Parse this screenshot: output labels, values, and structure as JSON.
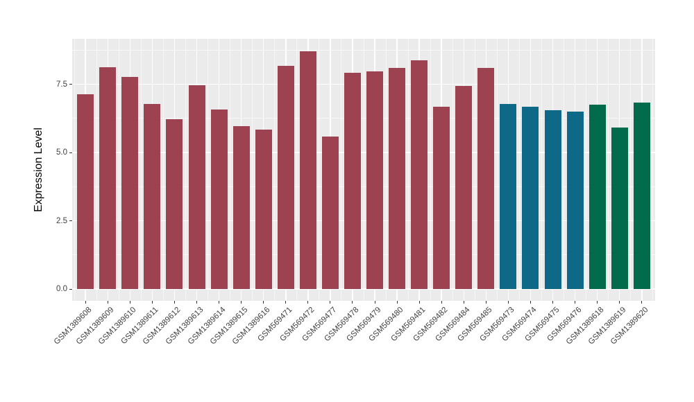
{
  "chart_data": {
    "type": "bar",
    "title": "",
    "xlabel": "",
    "ylabel": "Expression Level",
    "ylim": [
      0,
      9.17
    ],
    "grid": true,
    "legend": false,
    "panel_background": "#EBEBEB",
    "gridline_color": "#FFFFFF",
    "tick_color": "#333333",
    "tick_label_color": "#404040",
    "y_ticks": [
      {
        "value": 0.0,
        "label": "0.0"
      },
      {
        "value": 2.5,
        "label": "2.5"
      },
      {
        "value": 5.0,
        "label": "5.0"
      },
      {
        "value": 7.5,
        "label": "7.5"
      }
    ],
    "group_colors": {
      "maroon": "#9D4250",
      "teal": "#0E6887",
      "green": "#016B4C"
    },
    "categories": [
      "GSM1389608",
      "GSM1389609",
      "GSM1389610",
      "GSM1389611",
      "GSM1389612",
      "GSM1389613",
      "GSM1389614",
      "GSM1389615",
      "GSM1389616",
      "GSM569471",
      "GSM569472",
      "GSM569477",
      "GSM569478",
      "GSM569479",
      "GSM569480",
      "GSM569481",
      "GSM569482",
      "GSM569484",
      "GSM569485",
      "GSM569473",
      "GSM569474",
      "GSM569475",
      "GSM569476",
      "GSM1389618",
      "GSM1389619",
      "GSM1389620"
    ],
    "values": [
      7.15,
      8.12,
      7.76,
      6.77,
      6.22,
      7.48,
      6.58,
      5.96,
      5.85,
      8.19,
      8.72,
      5.59,
      7.92,
      7.97,
      8.09,
      8.37,
      6.68,
      7.43,
      8.11,
      6.77,
      6.67,
      6.55,
      6.49,
      6.75,
      5.91,
      6.82
    ],
    "bar_colors": [
      "#9D4250",
      "#9D4250",
      "#9D4250",
      "#9D4250",
      "#9D4250",
      "#9D4250",
      "#9D4250",
      "#9D4250",
      "#9D4250",
      "#9D4250",
      "#9D4250",
      "#9D4250",
      "#9D4250",
      "#9D4250",
      "#9D4250",
      "#9D4250",
      "#9D4250",
      "#9D4250",
      "#9D4250",
      "#0E6887",
      "#0E6887",
      "#0E6887",
      "#0E6887",
      "#016B4C",
      "#016B4C",
      "#016B4C"
    ]
  }
}
